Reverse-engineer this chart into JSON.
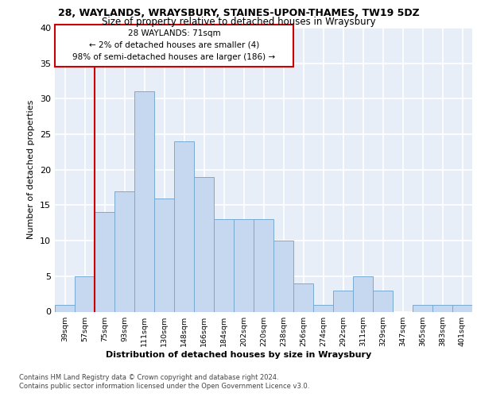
{
  "title": "28, WAYLANDS, WRAYSBURY, STAINES-UPON-THAMES, TW19 5DZ",
  "subtitle": "Size of property relative to detached houses in Wraysbury",
  "xlabel": "Distribution of detached houses by size in Wraysbury",
  "ylabel": "Number of detached properties",
  "categories": [
    "39sqm",
    "57sqm",
    "75sqm",
    "93sqm",
    "111sqm",
    "130sqm",
    "148sqm",
    "166sqm",
    "184sqm",
    "202sqm",
    "220sqm",
    "238sqm",
    "256sqm",
    "274sqm",
    "292sqm",
    "311sqm",
    "329sqm",
    "347sqm",
    "365sqm",
    "383sqm",
    "401sqm"
  ],
  "values": [
    1,
    5,
    14,
    17,
    31,
    16,
    24,
    19,
    13,
    13,
    13,
    10,
    4,
    1,
    3,
    5,
    3,
    0,
    1,
    1,
    1
  ],
  "bar_color": "#c5d8f0",
  "bar_edge_color": "#7aaad0",
  "vline_x_idx": 1.5,
  "vline_color": "#cc0000",
  "box_edge_color": "#cc0000",
  "annotation_line1": "28 WAYLANDS: 71sqm",
  "annotation_line2": "← 2% of detached houses are smaller (4)",
  "annotation_line3": "98% of semi-detached houses are larger (186) →",
  "footnote1": "Contains HM Land Registry data © Crown copyright and database right 2024.",
  "footnote2": "Contains public sector information licensed under the Open Government Licence v3.0.",
  "ylim": [
    0,
    40
  ],
  "yticks": [
    0,
    5,
    10,
    15,
    20,
    25,
    30,
    35,
    40
  ],
  "bg_color": "#e8eef8",
  "fig_bg_color": "#ffffff",
  "grid_color": "#ffffff"
}
